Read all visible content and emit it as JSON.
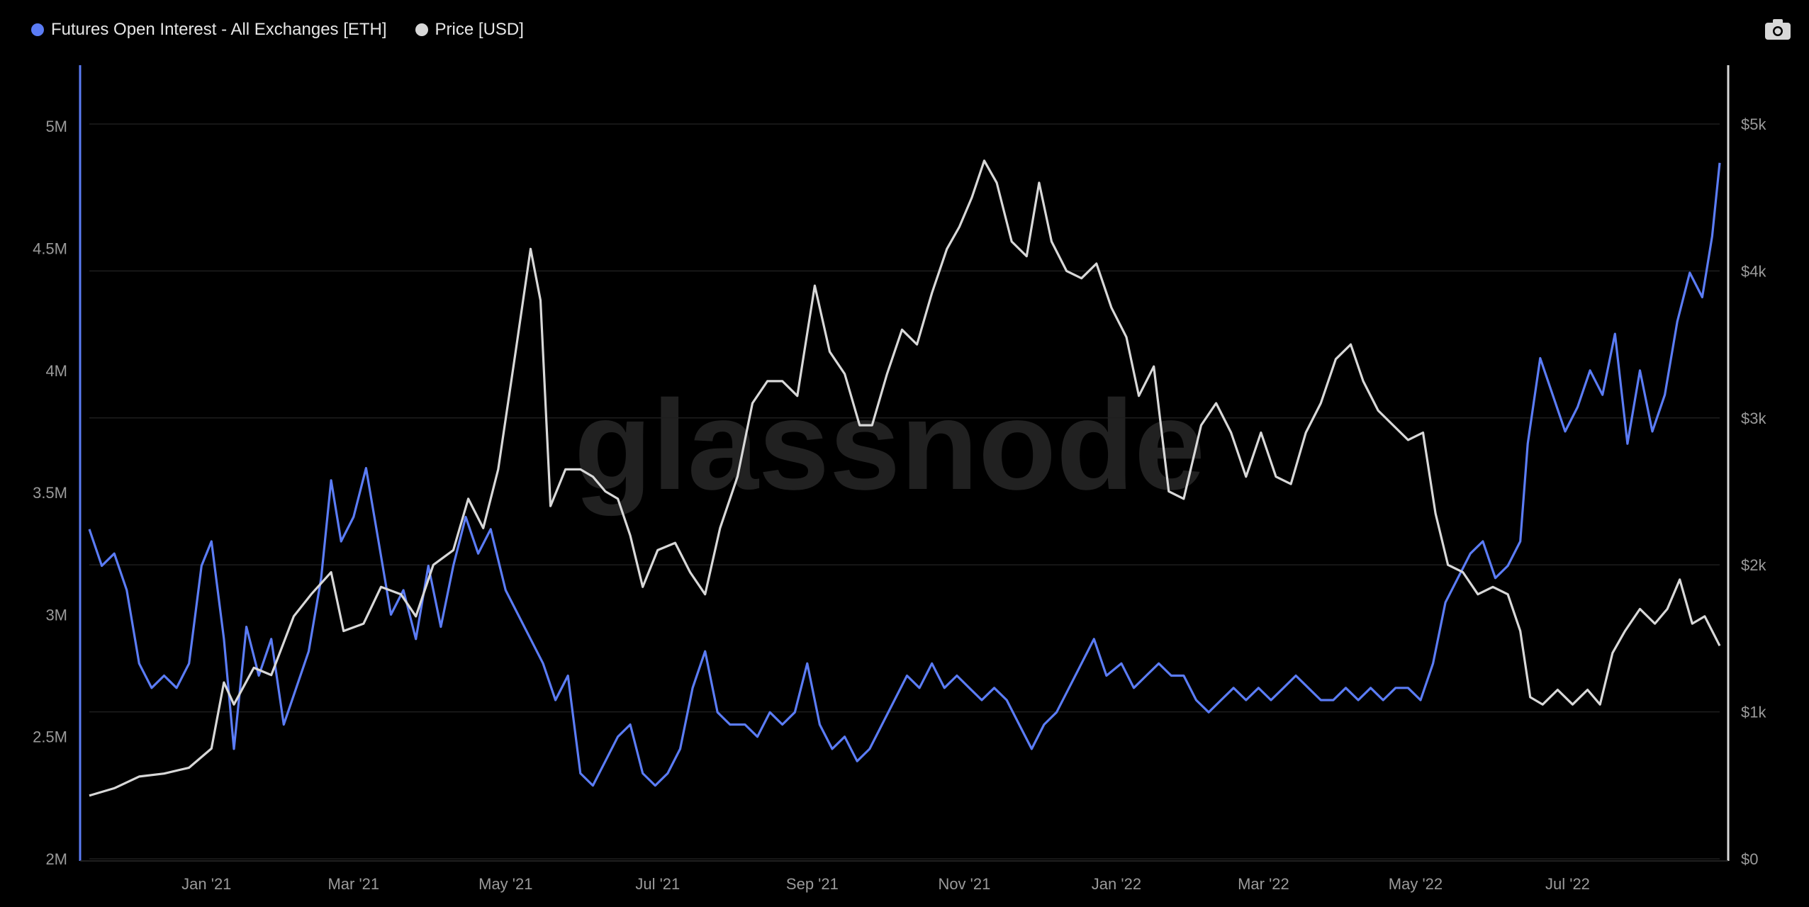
{
  "legend": [
    {
      "label": "Futures Open Interest - All Exchanges [ETH]",
      "color": "#5b7cf5"
    },
    {
      "label": "Price [USD]",
      "color": "#d8d8d8"
    }
  ],
  "toolbar": {
    "camera_icon": "camera-icon"
  },
  "watermark": "glassnode",
  "chart_data": {
    "type": "line",
    "title": "",
    "x_ticks": [
      "Jan '21",
      "Mar '21",
      "May '21",
      "Jul '21",
      "Sep '21",
      "Nov '21",
      "Jan '22",
      "Mar '22",
      "May '22",
      "Jul '22"
    ],
    "x_tick_dates": [
      "2021-01-01",
      "2021-03-01",
      "2021-05-01",
      "2021-07-01",
      "2021-09-01",
      "2021-11-01",
      "2022-01-01",
      "2022-03-01",
      "2022-05-01",
      "2022-07-01"
    ],
    "x_range": [
      "2020-11-15",
      "2022-08-31"
    ],
    "y_left": {
      "label": "",
      "range": [
        2000000,
        5250000
      ],
      "ticks": [
        "2M",
        "2.5M",
        "3M",
        "3.5M",
        "4M",
        "4.5M",
        "5M"
      ],
      "tick_values": [
        2000000,
        2500000,
        3000000,
        3500000,
        4000000,
        4500000,
        5000000
      ]
    },
    "y_right": {
      "label": "",
      "range": [
        0,
        5400
      ],
      "ticks": [
        "$0",
        "$1k",
        "$2k",
        "$3k",
        "$4k",
        "$5k"
      ],
      "tick_values": [
        0,
        1000,
        2000,
        3000,
        4000,
        5000
      ]
    },
    "grid": true,
    "legend_position": "top-left",
    "series": [
      {
        "name": "Futures Open Interest - All Exchanges [ETH]",
        "axis": "left",
        "color": "#5b7cf5",
        "points": [
          [
            "2020-11-15",
            3350000
          ],
          [
            "2020-11-20",
            3200000
          ],
          [
            "2020-11-25",
            3250000
          ],
          [
            "2020-11-30",
            3100000
          ],
          [
            "2020-12-05",
            2800000
          ],
          [
            "2020-12-10",
            2700000
          ],
          [
            "2020-12-15",
            2750000
          ],
          [
            "2020-12-20",
            2700000
          ],
          [
            "2020-12-25",
            2800000
          ],
          [
            "2020-12-30",
            3200000
          ],
          [
            "2021-01-03",
            3300000
          ],
          [
            "2021-01-08",
            2900000
          ],
          [
            "2021-01-12",
            2450000
          ],
          [
            "2021-01-17",
            2950000
          ],
          [
            "2021-01-22",
            2750000
          ],
          [
            "2021-01-27",
            2900000
          ],
          [
            "2021-02-01",
            2550000
          ],
          [
            "2021-02-06",
            2700000
          ],
          [
            "2021-02-11",
            2850000
          ],
          [
            "2021-02-16",
            3150000
          ],
          [
            "2021-02-20",
            3550000
          ],
          [
            "2021-02-24",
            3300000
          ],
          [
            "2021-03-01",
            3400000
          ],
          [
            "2021-03-06",
            3600000
          ],
          [
            "2021-03-11",
            3300000
          ],
          [
            "2021-03-16",
            3000000
          ],
          [
            "2021-03-21",
            3100000
          ],
          [
            "2021-03-26",
            2900000
          ],
          [
            "2021-03-31",
            3200000
          ],
          [
            "2021-04-05",
            2950000
          ],
          [
            "2021-04-10",
            3200000
          ],
          [
            "2021-04-15",
            3400000
          ],
          [
            "2021-04-20",
            3250000
          ],
          [
            "2021-04-25",
            3350000
          ],
          [
            "2021-05-01",
            3100000
          ],
          [
            "2021-05-06",
            3000000
          ],
          [
            "2021-05-11",
            2900000
          ],
          [
            "2021-05-16",
            2800000
          ],
          [
            "2021-05-21",
            2650000
          ],
          [
            "2021-05-26",
            2750000
          ],
          [
            "2021-05-31",
            2350000
          ],
          [
            "2021-06-05",
            2300000
          ],
          [
            "2021-06-10",
            2400000
          ],
          [
            "2021-06-15",
            2500000
          ],
          [
            "2021-06-20",
            2550000
          ],
          [
            "2021-06-25",
            2350000
          ],
          [
            "2021-06-30",
            2300000
          ],
          [
            "2021-07-05",
            2350000
          ],
          [
            "2021-07-10",
            2450000
          ],
          [
            "2021-07-15",
            2700000
          ],
          [
            "2021-07-20",
            2850000
          ],
          [
            "2021-07-25",
            2600000
          ],
          [
            "2021-07-30",
            2550000
          ],
          [
            "2021-08-05",
            2550000
          ],
          [
            "2021-08-10",
            2500000
          ],
          [
            "2021-08-15",
            2600000
          ],
          [
            "2021-08-20",
            2550000
          ],
          [
            "2021-08-25",
            2600000
          ],
          [
            "2021-08-30",
            2800000
          ],
          [
            "2021-09-04",
            2550000
          ],
          [
            "2021-09-09",
            2450000
          ],
          [
            "2021-09-14",
            2500000
          ],
          [
            "2021-09-19",
            2400000
          ],
          [
            "2021-09-24",
            2450000
          ],
          [
            "2021-09-29",
            2550000
          ],
          [
            "2021-10-04",
            2650000
          ],
          [
            "2021-10-09",
            2750000
          ],
          [
            "2021-10-14",
            2700000
          ],
          [
            "2021-10-19",
            2800000
          ],
          [
            "2021-10-24",
            2700000
          ],
          [
            "2021-10-29",
            2750000
          ],
          [
            "2021-11-03",
            2700000
          ],
          [
            "2021-11-08",
            2650000
          ],
          [
            "2021-11-13",
            2700000
          ],
          [
            "2021-11-18",
            2650000
          ],
          [
            "2021-11-23",
            2550000
          ],
          [
            "2021-11-28",
            2450000
          ],
          [
            "2021-12-03",
            2550000
          ],
          [
            "2021-12-08",
            2600000
          ],
          [
            "2021-12-13",
            2700000
          ],
          [
            "2021-12-18",
            2800000
          ],
          [
            "2021-12-23",
            2900000
          ],
          [
            "2021-12-28",
            2750000
          ],
          [
            "2022-01-03",
            2800000
          ],
          [
            "2022-01-08",
            2700000
          ],
          [
            "2022-01-13",
            2750000
          ],
          [
            "2022-01-18",
            2800000
          ],
          [
            "2022-01-23",
            2750000
          ],
          [
            "2022-01-28",
            2750000
          ],
          [
            "2022-02-02",
            2650000
          ],
          [
            "2022-02-07",
            2600000
          ],
          [
            "2022-02-12",
            2650000
          ],
          [
            "2022-02-17",
            2700000
          ],
          [
            "2022-02-22",
            2650000
          ],
          [
            "2022-02-27",
            2700000
          ],
          [
            "2022-03-04",
            2650000
          ],
          [
            "2022-03-09",
            2700000
          ],
          [
            "2022-03-14",
            2750000
          ],
          [
            "2022-03-19",
            2700000
          ],
          [
            "2022-03-24",
            2650000
          ],
          [
            "2022-03-29",
            2650000
          ],
          [
            "2022-04-03",
            2700000
          ],
          [
            "2022-04-08",
            2650000
          ],
          [
            "2022-04-13",
            2700000
          ],
          [
            "2022-04-18",
            2650000
          ],
          [
            "2022-04-23",
            2700000
          ],
          [
            "2022-04-28",
            2700000
          ],
          [
            "2022-05-03",
            2650000
          ],
          [
            "2022-05-08",
            2800000
          ],
          [
            "2022-05-13",
            3050000
          ],
          [
            "2022-05-18",
            3150000
          ],
          [
            "2022-05-23",
            3250000
          ],
          [
            "2022-05-28",
            3300000
          ],
          [
            "2022-06-02",
            3150000
          ],
          [
            "2022-06-07",
            3200000
          ],
          [
            "2022-06-12",
            3300000
          ],
          [
            "2022-06-15",
            3700000
          ],
          [
            "2022-06-20",
            4050000
          ],
          [
            "2022-06-25",
            3900000
          ],
          [
            "2022-06-30",
            3750000
          ],
          [
            "2022-07-05",
            3850000
          ],
          [
            "2022-07-10",
            4000000
          ],
          [
            "2022-07-15",
            3900000
          ],
          [
            "2022-07-20",
            4150000
          ],
          [
            "2022-07-25",
            3700000
          ],
          [
            "2022-07-30",
            4000000
          ],
          [
            "2022-08-04",
            3750000
          ],
          [
            "2022-08-09",
            3900000
          ],
          [
            "2022-08-14",
            4200000
          ],
          [
            "2022-08-19",
            4400000
          ],
          [
            "2022-08-24",
            4300000
          ],
          [
            "2022-08-28",
            4550000
          ],
          [
            "2022-08-31",
            4850000
          ]
        ]
      },
      {
        "name": "Price [USD]",
        "axis": "right",
        "color": "#d8d8d8",
        "points": [
          [
            "2020-11-15",
            430
          ],
          [
            "2020-11-25",
            480
          ],
          [
            "2020-12-05",
            560
          ],
          [
            "2020-12-15",
            580
          ],
          [
            "2020-12-25",
            620
          ],
          [
            "2021-01-03",
            750
          ],
          [
            "2021-01-08",
            1200
          ],
          [
            "2021-01-12",
            1050
          ],
          [
            "2021-01-20",
            1300
          ],
          [
            "2021-01-27",
            1250
          ],
          [
            "2021-02-05",
            1650
          ],
          [
            "2021-02-12",
            1800
          ],
          [
            "2021-02-20",
            1950
          ],
          [
            "2021-02-25",
            1550
          ],
          [
            "2021-03-05",
            1600
          ],
          [
            "2021-03-12",
            1850
          ],
          [
            "2021-03-20",
            1800
          ],
          [
            "2021-03-26",
            1650
          ],
          [
            "2021-04-02",
            2000
          ],
          [
            "2021-04-10",
            2100
          ],
          [
            "2021-04-16",
            2450
          ],
          [
            "2021-04-22",
            2250
          ],
          [
            "2021-04-28",
            2650
          ],
          [
            "2021-05-05",
            3450
          ],
          [
            "2021-05-11",
            4150
          ],
          [
            "2021-05-15",
            3800
          ],
          [
            "2021-05-19",
            2400
          ],
          [
            "2021-05-25",
            2650
          ],
          [
            "2021-05-31",
            2650
          ],
          [
            "2021-06-05",
            2600
          ],
          [
            "2021-06-10",
            2500
          ],
          [
            "2021-06-15",
            2450
          ],
          [
            "2021-06-20",
            2200
          ],
          [
            "2021-06-25",
            1850
          ],
          [
            "2021-07-01",
            2100
          ],
          [
            "2021-07-08",
            2150
          ],
          [
            "2021-07-14",
            1950
          ],
          [
            "2021-07-20",
            1800
          ],
          [
            "2021-07-26",
            2250
          ],
          [
            "2021-08-02",
            2600
          ],
          [
            "2021-08-08",
            3100
          ],
          [
            "2021-08-14",
            3250
          ],
          [
            "2021-08-20",
            3250
          ],
          [
            "2021-08-26",
            3150
          ],
          [
            "2021-09-02",
            3900
          ],
          [
            "2021-09-08",
            3450
          ],
          [
            "2021-09-14",
            3300
          ],
          [
            "2021-09-20",
            2950
          ],
          [
            "2021-09-25",
            2950
          ],
          [
            "2021-10-01",
            3300
          ],
          [
            "2021-10-07",
            3600
          ],
          [
            "2021-10-13",
            3500
          ],
          [
            "2021-10-19",
            3850
          ],
          [
            "2021-10-25",
            4150
          ],
          [
            "2021-10-30",
            4300
          ],
          [
            "2021-11-04",
            4500
          ],
          [
            "2021-11-09",
            4750
          ],
          [
            "2021-11-14",
            4600
          ],
          [
            "2021-11-20",
            4200
          ],
          [
            "2021-11-26",
            4100
          ],
          [
            "2021-12-01",
            4600
          ],
          [
            "2021-12-06",
            4200
          ],
          [
            "2021-12-12",
            4000
          ],
          [
            "2021-12-18",
            3950
          ],
          [
            "2021-12-24",
            4050
          ],
          [
            "2021-12-30",
            3750
          ],
          [
            "2022-01-05",
            3550
          ],
          [
            "2022-01-10",
            3150
          ],
          [
            "2022-01-16",
            3350
          ],
          [
            "2022-01-22",
            2500
          ],
          [
            "2022-01-28",
            2450
          ],
          [
            "2022-02-04",
            2950
          ],
          [
            "2022-02-10",
            3100
          ],
          [
            "2022-02-16",
            2900
          ],
          [
            "2022-02-22",
            2600
          ],
          [
            "2022-02-28",
            2900
          ],
          [
            "2022-03-06",
            2600
          ],
          [
            "2022-03-12",
            2550
          ],
          [
            "2022-03-18",
            2900
          ],
          [
            "2022-03-24",
            3100
          ],
          [
            "2022-03-30",
            3400
          ],
          [
            "2022-04-05",
            3500
          ],
          [
            "2022-04-10",
            3250
          ],
          [
            "2022-04-16",
            3050
          ],
          [
            "2022-04-22",
            2950
          ],
          [
            "2022-04-28",
            2850
          ],
          [
            "2022-05-04",
            2900
          ],
          [
            "2022-05-09",
            2350
          ],
          [
            "2022-05-14",
            2000
          ],
          [
            "2022-05-20",
            1950
          ],
          [
            "2022-05-26",
            1800
          ],
          [
            "2022-06-01",
            1850
          ],
          [
            "2022-06-07",
            1800
          ],
          [
            "2022-06-12",
            1550
          ],
          [
            "2022-06-16",
            1100
          ],
          [
            "2022-06-21",
            1050
          ],
          [
            "2022-06-27",
            1150
          ],
          [
            "2022-07-03",
            1050
          ],
          [
            "2022-07-09",
            1150
          ],
          [
            "2022-07-14",
            1050
          ],
          [
            "2022-07-19",
            1400
          ],
          [
            "2022-07-24",
            1550
          ],
          [
            "2022-07-30",
            1700
          ],
          [
            "2022-08-05",
            1600
          ],
          [
            "2022-08-10",
            1700
          ],
          [
            "2022-08-15",
            1900
          ],
          [
            "2022-08-20",
            1600
          ],
          [
            "2022-08-25",
            1650
          ],
          [
            "2022-08-31",
            1450
          ]
        ]
      }
    ]
  }
}
